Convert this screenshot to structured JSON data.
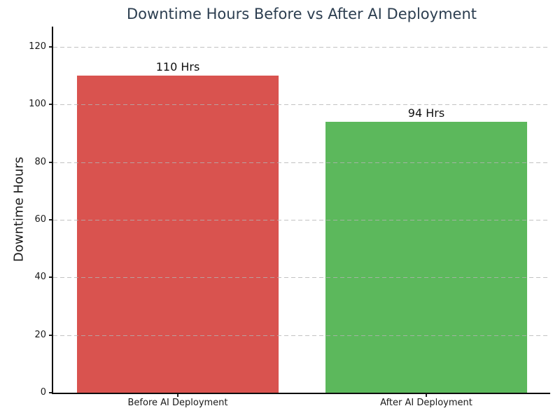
{
  "chart_data": {
    "type": "bar",
    "title": "Downtime Hours Before vs After AI Deployment",
    "title_color": "#2c3e50",
    "xlabel": "",
    "ylabel": "Downtime Hours",
    "categories": [
      "Before AI Deployment",
      "After AI Deployment"
    ],
    "values": [
      110,
      94
    ],
    "bar_labels": [
      "110 Hrs",
      "94 Hrs"
    ],
    "bar_colors": [
      "#d9534f",
      "#5cb85c"
    ],
    "yticks": [
      0,
      20,
      40,
      60,
      80,
      100,
      120
    ],
    "ylim": [
      0,
      127
    ],
    "grid": "horizontal-dashed-over-bars",
    "legend": "none"
  }
}
